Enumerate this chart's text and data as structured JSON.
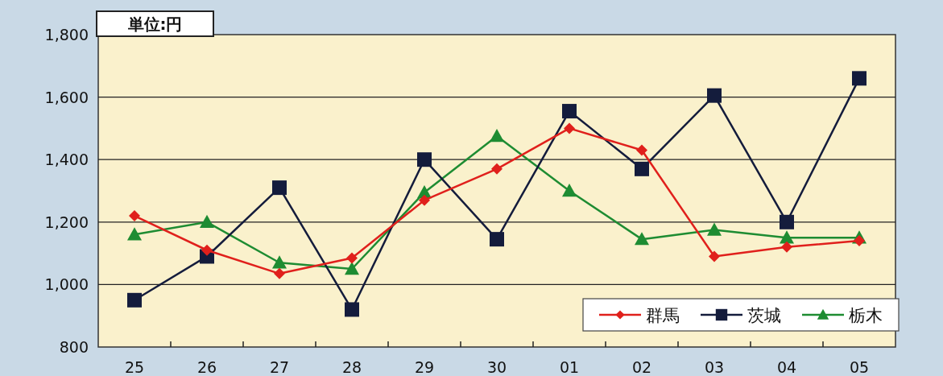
{
  "chart_data": {
    "type": "line",
    "annotations": [
      "単位:円"
    ],
    "categories": [
      "25",
      "26",
      "27",
      "28",
      "29",
      "30",
      "01",
      "02",
      "03",
      "04",
      "05"
    ],
    "series": [
      {
        "name": "群馬",
        "color": "#e0201c",
        "marker": "diamond",
        "values": [
          1220,
          1110,
          1035,
          1085,
          1270,
          1370,
          1500,
          1430,
          1090,
          1120,
          1140
        ]
      },
      {
        "name": "茨城",
        "color": "#141c3c",
        "marker": "square",
        "values": [
          950,
          1090,
          1310,
          920,
          1400,
          1145,
          1555,
          1370,
          1605,
          1200,
          1660
        ]
      },
      {
        "name": "栃木",
        "color": "#1e8c32",
        "marker": "triangle",
        "values": [
          1160,
          1200,
          1070,
          1050,
          1295,
          1475,
          1300,
          1145,
          1175,
          1150,
          1150
        ]
      }
    ],
    "ylim": [
      800,
      1800
    ],
    "yticks": [
      {
        "value": 800,
        "label": "800"
      },
      {
        "value": 1000,
        "label": "1,000"
      },
      {
        "value": 1200,
        "label": "1,200"
      },
      {
        "value": 1400,
        "label": "1,400"
      },
      {
        "value": 1600,
        "label": "1,600"
      },
      {
        "value": 1800,
        "label": "1,800"
      }
    ],
    "grid": "y",
    "legend": "bottom right"
  }
}
